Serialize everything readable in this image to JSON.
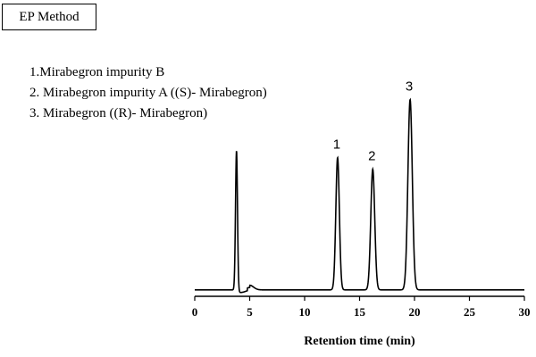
{
  "method_label": "EP Method",
  "legend": {
    "items": [
      "1.Mirabegron impurity B",
      "2. Mirabegron impurity A ((S)- Mirabegron)",
      "3. Mirabegron ((R)- Mirabegron)"
    ]
  },
  "chart_data": {
    "type": "line",
    "title": "",
    "xlabel": "Retention time (min)",
    "ylabel": "",
    "xlim": [
      0,
      30
    ],
    "xticks": [
      0,
      5,
      10,
      15,
      20,
      25,
      30
    ],
    "ylim": [
      0,
      1.0
    ],
    "grid": false,
    "line_color": "#000000",
    "baseline": 0.02,
    "disturbance": {
      "x": 5.0,
      "height": 0.02
    },
    "peaks": [
      {
        "label": "",
        "rt": 3.8,
        "height": 0.6,
        "width": 0.09
      },
      {
        "label": "1",
        "rt": 13.0,
        "height": 0.57,
        "width": 0.16
      },
      {
        "label": "2",
        "rt": 16.2,
        "height": 0.52,
        "width": 0.18
      },
      {
        "label": "3",
        "rt": 19.6,
        "height": 0.82,
        "width": 0.2
      }
    ]
  }
}
